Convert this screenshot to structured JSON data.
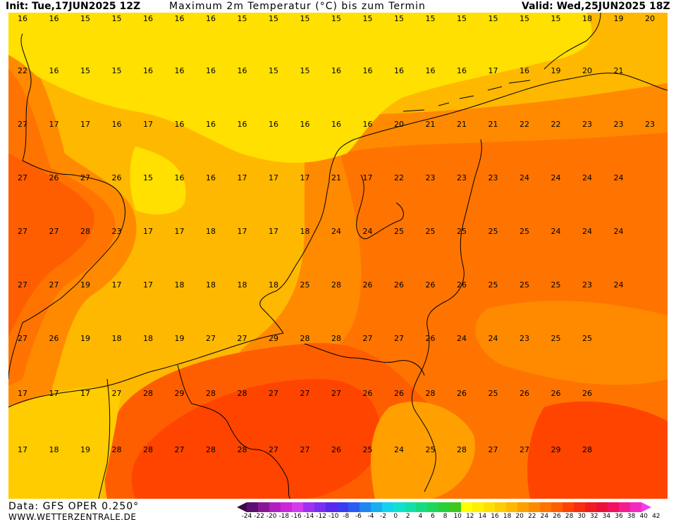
{
  "header": {
    "init": "Init: Tue,17JUN2025 12Z",
    "title": "Maximum 2m Temperatur (°C) bis zum Termin",
    "valid": "Valid: Wed,25JUN2025 18Z"
  },
  "footer": {
    "data_source": "Data: GFS OPER 0.250°",
    "website": "WWW.WETTERZENTRALE.DE"
  },
  "legend": {
    "colors": [
      "#3a0a46",
      "#5e1070",
      "#8a1896",
      "#b11ec0",
      "#cc26dc",
      "#d63aee",
      "#a030ee",
      "#7a2ef0",
      "#5a28ee",
      "#3c3cf0",
      "#2a5cf2",
      "#1f86f2",
      "#18aef0",
      "#12d2f0",
      "#10e0d0",
      "#12e0a8",
      "#16dc80",
      "#1cd85a",
      "#28d038",
      "#3cc81e",
      "#ffff00",
      "#fff000",
      "#ffe000",
      "#ffcc00",
      "#ffb800",
      "#ffa000",
      "#ff8a00",
      "#ff7400",
      "#ff5e00",
      "#ff4400",
      "#f82e10",
      "#f01c20",
      "#ec1038",
      "#f21060",
      "#f61c90",
      "#f42ac0",
      "#f040e8"
    ],
    "labels": [
      "-24",
      "-22",
      "-20",
      "-18",
      "-16",
      "-14",
      "-12",
      "-10",
      "-8",
      "-6",
      "-4",
      "-2",
      "0",
      "2",
      "4",
      "6",
      "8",
      "10",
      "12",
      "14",
      "16",
      "18",
      "20",
      "22",
      "24",
      "26",
      "28",
      "30",
      "32",
      "34",
      "36",
      "38",
      "40",
      "42"
    ]
  },
  "temperature_rows": [
    [
      "16",
      "16",
      "15",
      "15",
      "16",
      "16",
      "16",
      "15",
      "15",
      "15",
      "15",
      "15",
      "15",
      "15",
      "15",
      "15",
      "15",
      "15",
      "18",
      "19",
      "20"
    ],
    [
      "22",
      "16",
      "15",
      "15",
      "16",
      "16",
      "16",
      "16",
      "15",
      "15",
      "16",
      "16",
      "16",
      "16",
      "16",
      "17",
      "16",
      "19",
      "20",
      "21"
    ],
    [
      "27",
      "17",
      "17",
      "16",
      "17",
      "16",
      "16",
      "16",
      "16",
      "16",
      "16",
      "16",
      "20",
      "21",
      "21",
      "21",
      "22",
      "22",
      "23",
      "23",
      "23"
    ],
    [
      "27",
      "26",
      "27",
      "26",
      "15",
      "16",
      "16",
      "17",
      "17",
      "17",
      "21",
      "17",
      "22",
      "23",
      "23",
      "23",
      "24",
      "24",
      "24",
      "24"
    ],
    [
      "27",
      "27",
      "28",
      "23",
      "17",
      "17",
      "18",
      "17",
      "17",
      "18",
      "24",
      "24",
      "25",
      "25",
      "25",
      "25",
      "25",
      "24",
      "24",
      "24"
    ],
    [
      "27",
      "27",
      "19",
      "17",
      "17",
      "18",
      "18",
      "18",
      "18",
      "25",
      "28",
      "26",
      "26",
      "26",
      "26",
      "25",
      "25",
      "25",
      "23",
      "24"
    ],
    [
      "27",
      "26",
      "19",
      "18",
      "18",
      "19",
      "27",
      "27",
      "29",
      "28",
      "28",
      "27",
      "27",
      "26",
      "24",
      "24",
      "23",
      "25",
      "25"
    ],
    [
      "17",
      "17",
      "17",
      "27",
      "28",
      "29",
      "28",
      "28",
      "27",
      "27",
      "27",
      "26",
      "26",
      "28",
      "26",
      "25",
      "26",
      "26",
      "26"
    ],
    [
      "17",
      "18",
      "19",
      "28",
      "28",
      "27",
      "28",
      "28",
      "27",
      "27",
      "26",
      "25",
      "24",
      "25",
      "28",
      "27",
      "27",
      "29",
      "28"
    ]
  ],
  "colors": {
    "yellow": "#ffe000",
    "light_orange": "#ffcc00",
    "orange_1": "#ffb800",
    "orange_2": "#ffa000",
    "orange_3": "#ff8a00",
    "orange_4": "#ff7400",
    "red_orange": "#ff5e00",
    "red": "#ff4400",
    "coastline": "#000000"
  }
}
